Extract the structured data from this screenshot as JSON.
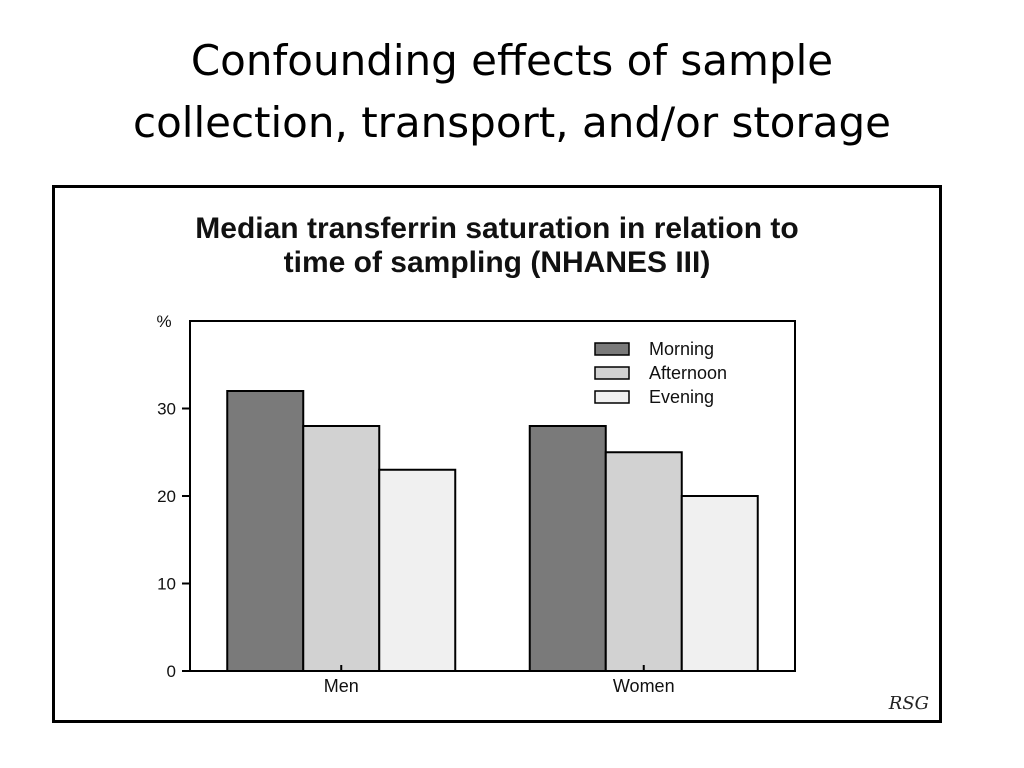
{
  "slide": {
    "title_line1": "Confounding effects of sample",
    "title_line2": "collection, transport, and/or storage"
  },
  "figure": {
    "signature": "RSG"
  },
  "chart_data": {
    "type": "bar",
    "title": "Median transferrin saturation in relation to time of sampling (NHANES III)",
    "title_lines": [
      "Median transferrin saturation in relation to",
      "time of sampling (NHANES III)"
    ],
    "ylabel": "%",
    "xlabel": "",
    "ylim": [
      0,
      40
    ],
    "yticks": [
      0,
      10,
      20,
      30
    ],
    "categories": [
      "Men",
      "Women"
    ],
    "series": [
      {
        "name": "Morning",
        "values": [
          32,
          28
        ],
        "color": "#7a7a7a"
      },
      {
        "name": "Afternoon",
        "values": [
          28,
          25
        ],
        "color": "#d2d2d2"
      },
      {
        "name": "Evening",
        "values": [
          23,
          20
        ],
        "color": "#f0f0f0"
      }
    ],
    "legend_position": "top-right",
    "grid": false
  }
}
